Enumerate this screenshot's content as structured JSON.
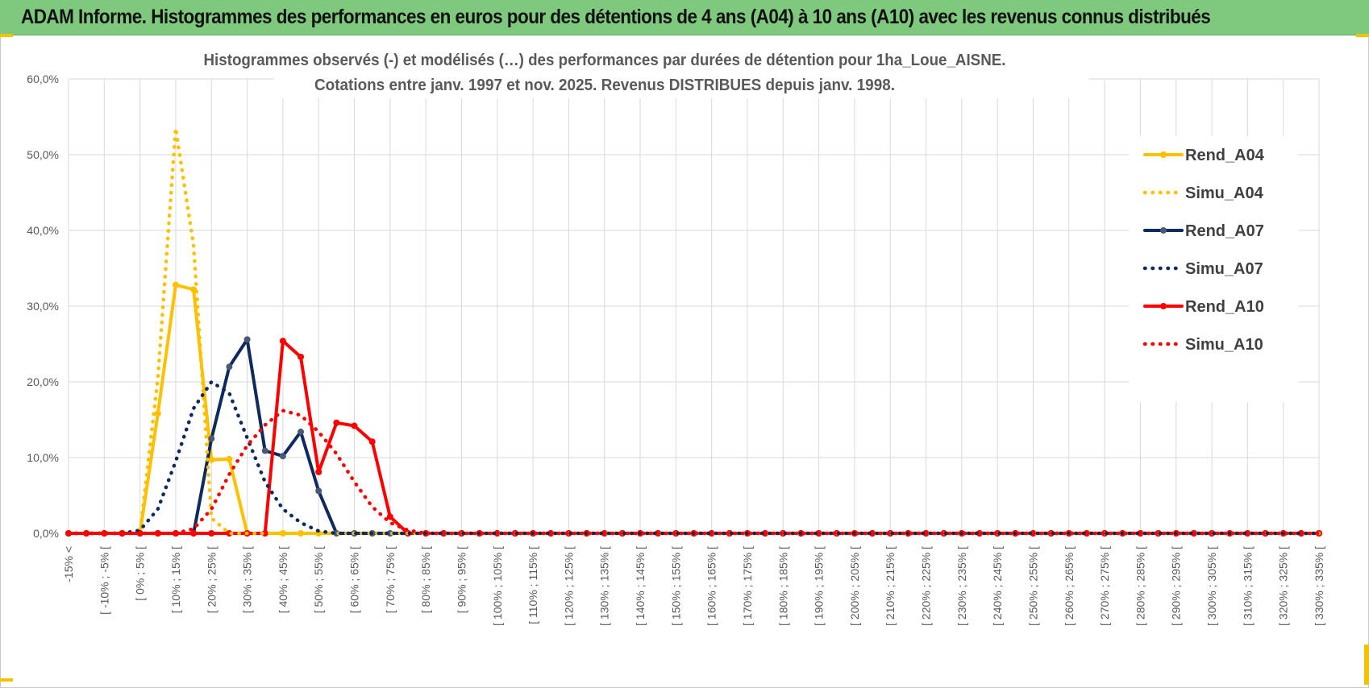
{
  "banner": {
    "title": "ADAM Informe. Histogrammes des performances en euros pour des détentions de 4 ans (A04) à 10 ans (A10) avec les revenus connus distribués"
  },
  "colors": {
    "banner_bg": "#7fc97f",
    "accent": "#f5c200",
    "A04": "#ffc000",
    "A07": "#0f2a5c",
    "A10": "#ff0000",
    "grid": "#d9d9d9"
  },
  "chart_data": {
    "type": "line",
    "title": [
      "Histogrammes observés (-) et modélisés (…)  des performances par durées de détention pour 1ha_Loue_AISNE.",
      "Cotations entre janv. 1997 et nov. 2025. Revenus DISTRIBUES depuis janv. 1998."
    ],
    "xlabel": "",
    "ylabel": "",
    "ylim": [
      0,
      60
    ],
    "y_ticks": [
      "0,0%",
      "10,0%",
      "20,0%",
      "30,0%",
      "40,0%",
      "50,0%",
      "60,0%"
    ],
    "grid": true,
    "legend_position": "right",
    "categories": [
      "-15% <",
      "[ -15% ; -10% [",
      "[ -10% ; -5% [",
      "[ -5% ; 0% [",
      "[ 0% ; 5% [",
      "[ 5% ; 10% [",
      "[ 10% ; 15% [",
      "[ 15% ; 20% [",
      "[ 20% ; 25% [",
      "[ 25% ; 30% [",
      "[ 30% ; 35% [",
      "[ 35% ; 40% [",
      "[ 40% ; 45% [",
      "[ 45% ; 50% [",
      "[ 50% ; 55% [",
      "[ 55% ; 60% [",
      "[ 60% ; 65% [",
      "[ 65% ; 70% [",
      "[ 70% ; 75% [",
      "[ 75% ; 80% [",
      "[ 80% ; 85% [",
      "[ 85% ; 90% [",
      "[ 90% ; 95% [",
      "[ 95% ; 100% [",
      "[ 100% ; 105% [",
      "[ 105% ; 110% [",
      "[ 110% ; 115% [",
      "[ 115% ; 120% [",
      "[ 120% ; 125% [",
      "[ 125% ; 130% [",
      "[ 130% ; 135% [",
      "[ 135% ; 140% [",
      "[ 140% ; 145% [",
      "[ 145% ; 150% [",
      "[ 150% ; 155% [",
      "[ 155% ; 160% [",
      "[ 160% ; 165% [",
      "[ 165% ; 170% [",
      "[ 170% ; 175% [",
      "[ 175% ; 180% [",
      "[ 180% ; 185% [",
      "[ 185% ; 190% [",
      "[ 190% ; 195% [",
      "[ 195% ; 200% [",
      "[ 200% ; 205% [",
      "[ 205% ; 210% [",
      "[ 210% ; 215% [",
      "[ 215% ; 220% [",
      "[ 220% ; 225% [",
      "[ 225% ; 230% [",
      "[ 230% ; 235% [",
      "[ 235% ; 240% [",
      "[ 240% ; 245% [",
      "[ 245% ; 250% [",
      "[ 250% ; 255% [",
      "[ 255% ; 260% [",
      "[ 260% ; 265% [",
      "[ 265% ; 270% [",
      "[ 270% ; 275% [",
      "[ 275% ; 280% [",
      "[ 280% ; 285% [",
      "[ 285% ; 290% [",
      "[ 290% ; 295% [",
      "[ 295% ; 300% [",
      "[ 300% ; 305% [",
      "[ 305% ; 310% [",
      "[ 310% ; 315% [",
      "[ 315% ; 320% [",
      "[ 320% ; 325% [",
      "[ 325% ; 330% [",
      "[ 330% ; 335% ["
    ],
    "series": [
      {
        "name": "Rend_A04",
        "style": "solid",
        "color": "#ffc000",
        "values": [
          0,
          0,
          0,
          0,
          0,
          15.8,
          32.8,
          32.2,
          9.7,
          9.8,
          0,
          0,
          0,
          0,
          0,
          0,
          0,
          0,
          0,
          0,
          0,
          0,
          0,
          0,
          0,
          0,
          0,
          0,
          0,
          0,
          0,
          0,
          0,
          0,
          0,
          0,
          0,
          0,
          0,
          0,
          0,
          0,
          0,
          0,
          0,
          0,
          0,
          0,
          0,
          0,
          0,
          0,
          0,
          0,
          0,
          0,
          0,
          0,
          0,
          0,
          0,
          0,
          0,
          0,
          0,
          0,
          0,
          0,
          0,
          0,
          0
        ]
      },
      {
        "name": "Simu_A04",
        "style": "dotted",
        "color": "#ffc000",
        "values": [
          0,
          0,
          0,
          0,
          0,
          20.5,
          53.5,
          38.0,
          2.0,
          0,
          0,
          0,
          0,
          0,
          0,
          0,
          0,
          0,
          0,
          0,
          0,
          0,
          0,
          0,
          0,
          0,
          0,
          0,
          0,
          0,
          0,
          0,
          0,
          0,
          0,
          0,
          0,
          0,
          0,
          0,
          0,
          0,
          0,
          0,
          0,
          0,
          0,
          0,
          0,
          0,
          0,
          0,
          0,
          0,
          0,
          0,
          0,
          0,
          0,
          0,
          0,
          0,
          0,
          0,
          0,
          0,
          0,
          0,
          0,
          0,
          0
        ]
      },
      {
        "name": "Rend_A07",
        "style": "solid",
        "color": "#0f2a5c",
        "values": [
          0,
          0,
          0,
          0,
          0,
          0,
          0,
          0,
          12.5,
          22.0,
          25.6,
          10.9,
          10.2,
          13.4,
          5.6,
          0,
          0,
          0,
          0,
          0,
          0,
          0,
          0,
          0,
          0,
          0,
          0,
          0,
          0,
          0,
          0,
          0,
          0,
          0,
          0,
          0,
          0,
          0,
          0,
          0,
          0,
          0,
          0,
          0,
          0,
          0,
          0,
          0,
          0,
          0,
          0,
          0,
          0,
          0,
          0,
          0,
          0,
          0,
          0,
          0,
          0,
          0,
          0,
          0,
          0,
          0,
          0,
          0,
          0,
          0,
          0
        ]
      },
      {
        "name": "Simu_A07",
        "style": "dotted",
        "color": "#0f2a5c",
        "values": [
          0,
          0,
          0,
          0,
          0.4,
          3.2,
          9.5,
          16.5,
          20.0,
          18.5,
          12.6,
          6.8,
          3.2,
          1.4,
          0.3,
          0,
          0,
          0,
          0,
          0,
          0,
          0,
          0,
          0,
          0,
          0,
          0,
          0,
          0,
          0,
          0,
          0,
          0,
          0,
          0,
          0,
          0,
          0,
          0,
          0,
          0,
          0,
          0,
          0,
          0,
          0,
          0,
          0,
          0,
          0,
          0,
          0,
          0,
          0,
          0,
          0,
          0,
          0,
          0,
          0,
          0,
          0,
          0,
          0,
          0,
          0,
          0,
          0,
          0,
          0,
          0
        ]
      },
      {
        "name": "Rend_A10",
        "style": "solid",
        "color": "#ff0000",
        "values": [
          0,
          0,
          0,
          0,
          0,
          0,
          0,
          0,
          0,
          0,
          0,
          0,
          25.4,
          23.3,
          8.1,
          14.6,
          14.2,
          12.1,
          2.2,
          0,
          0,
          0,
          0,
          0,
          0,
          0,
          0,
          0,
          0,
          0,
          0,
          0,
          0,
          0,
          0,
          0,
          0,
          0,
          0,
          0,
          0,
          0,
          0,
          0,
          0,
          0,
          0,
          0,
          0,
          0,
          0,
          0,
          0,
          0,
          0,
          0,
          0,
          0,
          0,
          0,
          0,
          0,
          0,
          0,
          0,
          0,
          0,
          0,
          0,
          0,
          0
        ]
      },
      {
        "name": "Simu_A10",
        "style": "dotted",
        "color": "#ff0000",
        "values": [
          0,
          0,
          0,
          0,
          0,
          0,
          0,
          0.6,
          3.2,
          7.8,
          11.6,
          14.3,
          16.2,
          15.6,
          13.4,
          10.5,
          6.8,
          3.5,
          1.4,
          0.4,
          0,
          0,
          0,
          0,
          0,
          0,
          0,
          0,
          0,
          0,
          0,
          0,
          0,
          0,
          0,
          0,
          0,
          0,
          0,
          0,
          0,
          0,
          0,
          0,
          0,
          0,
          0,
          0,
          0,
          0,
          0,
          0,
          0,
          0,
          0,
          0,
          0,
          0,
          0,
          0,
          0,
          0,
          0,
          0,
          0,
          0,
          0,
          0,
          0,
          0,
          0
        ]
      }
    ]
  }
}
